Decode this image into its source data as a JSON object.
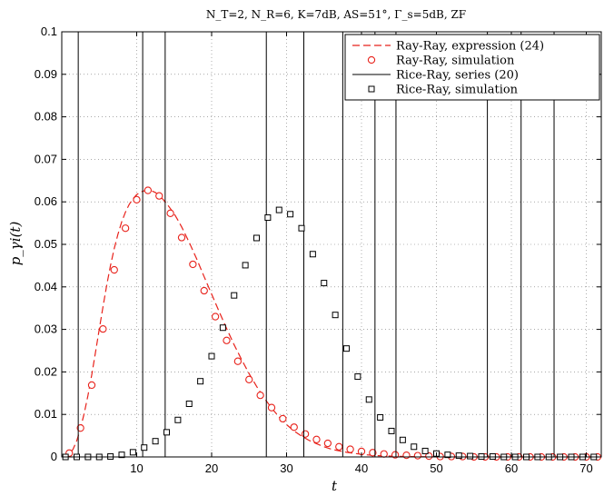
{
  "chart_data": {
    "type": "line",
    "title": "N_T=2, N_R=6, K=7dB, AS=51°, Γ_s=5dB, ZF",
    "xlabel": "t",
    "ylabel": "p_γi(t)",
    "xlim": [
      0,
      72
    ],
    "ylim": [
      0,
      0.1
    ],
    "xticks": [
      10,
      20,
      30,
      40,
      50,
      60,
      70
    ],
    "yticks": [
      "0",
      "0.01",
      "0.02",
      "0.03",
      "0.04",
      "0.05",
      "0.06",
      "0.07",
      "0.08",
      "0.09",
      "0.1"
    ],
    "grid": true,
    "legend_position": "top-right",
    "colors": {
      "ray": "#e8221b",
      "rice": "#000000"
    },
    "series": [
      {
        "name": "Ray-Ray, expression (24)",
        "style": "dashed-line",
        "x": [
          0.1,
          0.5,
          1,
          1.5,
          2,
          2.5,
          3,
          3.5,
          4,
          4.5,
          5,
          5.5,
          6,
          6.5,
          7,
          7.5,
          8,
          8.5,
          9,
          9.5,
          10,
          10.5,
          11,
          11.5,
          12,
          12.5,
          13,
          13.5,
          14,
          14.5,
          15,
          15.5,
          16,
          17,
          18,
          19,
          20,
          21,
          22,
          23,
          24,
          25,
          26,
          27,
          28,
          29,
          30,
          31,
          32,
          33,
          34,
          35,
          36,
          38,
          40,
          42,
          44,
          46,
          48,
          50,
          55,
          60,
          65,
          70,
          72
        ],
        "values": [
          0,
          0.0002,
          0.0007,
          0.0018,
          0.0038,
          0.0067,
          0.0103,
          0.0145,
          0.0193,
          0.0246,
          0.03,
          0.0353,
          0.0404,
          0.045,
          0.049,
          0.0524,
          0.0553,
          0.0576,
          0.0594,
          0.0607,
          0.0617,
          0.0623,
          0.0626,
          0.0627,
          0.0626,
          0.0622,
          0.0615,
          0.0606,
          0.0596,
          0.0584,
          0.0572,
          0.0557,
          0.0541,
          0.0505,
          0.0466,
          0.0424,
          0.0383,
          0.0342,
          0.0302,
          0.0264,
          0.0229,
          0.0196,
          0.0166,
          0.0139,
          0.0115,
          0.0094,
          0.0076,
          0.0061,
          0.0049,
          0.0039,
          0.0031,
          0.0024,
          0.0018,
          0.0011,
          0.0006,
          0.0003,
          0.0002,
          0.0001,
          5e-05,
          2e-05,
          0.0,
          0.0,
          0.0,
          0.0,
          0.0
        ]
      },
      {
        "name": "Ray-Ray, simulation",
        "style": "circle-markers",
        "x": [
          1.0,
          2.5,
          4.0,
          5.5,
          7.0,
          8.5,
          10.0,
          11.5,
          13.0,
          14.5,
          16.0,
          17.5,
          19.0,
          20.5,
          22.0,
          23.5,
          25.0,
          26.5,
          28.0,
          29.5,
          31.0,
          32.5,
          34.0,
          35.5,
          37.0,
          38.5,
          40.0,
          41.5,
          43.0,
          44.5,
          46.0,
          47.5,
          49.0,
          50.5,
          52.0,
          53.5,
          55.0,
          56.5,
          58.0,
          59.5,
          61.0,
          62.5,
          64.0,
          65.5,
          67.0,
          68.5,
          70.0,
          71.5
        ],
        "values": [
          0.0009,
          0.0068,
          0.0169,
          0.0301,
          0.044,
          0.0538,
          0.0605,
          0.0627,
          0.0614,
          0.0573,
          0.0516,
          0.0453,
          0.0391,
          0.033,
          0.0274,
          0.0225,
          0.0182,
          0.0145,
          0.0116,
          0.009,
          0.007,
          0.0054,
          0.0041,
          0.0032,
          0.0024,
          0.0018,
          0.0013,
          0.001,
          0.0007,
          0.0005,
          0.0004,
          0.0003,
          0.0002,
          0.0001,
          0.0001,
          0.0001,
          0.0,
          0.0,
          0.0,
          0.0,
          0.0,
          0.0,
          0.0,
          0.0,
          0.0,
          0.0,
          0.0,
          0.0
        ]
      },
      {
        "name": "Rice-Ray, series (20)",
        "style": "solid-line",
        "x": [
          2.2,
          10.8,
          13.8,
          27.3,
          32.3,
          37.5,
          41.8,
          44.6,
          56.8,
          61.3,
          65.7
        ],
        "values": [
          0.1,
          0.1,
          0.1,
          0.1,
          0.1,
          0.1,
          0.1,
          0.1,
          0.1,
          0.1,
          0.1
        ]
      },
      {
        "name": "Rice-Ray, simulation",
        "style": "square-markers",
        "x": [
          0.5,
          2.0,
          3.5,
          5.0,
          6.5,
          8.0,
          9.5,
          11.0,
          12.5,
          14.0,
          15.5,
          17.0,
          18.5,
          20.0,
          21.5,
          23.0,
          24.5,
          26.0,
          27.5,
          29.0,
          30.5,
          32.0,
          33.5,
          35.0,
          36.5,
          38.0,
          39.5,
          41.0,
          42.5,
          44.0,
          45.5,
          47.0,
          48.5,
          50.0,
          51.5,
          53.0,
          54.5,
          56.0,
          57.5,
          59.0,
          60.5,
          62.0,
          63.5,
          65.0,
          66.5,
          68.0,
          69.5,
          71.0
        ],
        "values": [
          0.0,
          0.0,
          0.0,
          0.0,
          0.0001,
          0.0005,
          0.0011,
          0.0022,
          0.0037,
          0.0058,
          0.0087,
          0.0125,
          0.0178,
          0.0237,
          0.0304,
          0.038,
          0.0451,
          0.0515,
          0.0563,
          0.0581,
          0.0571,
          0.0538,
          0.0477,
          0.0409,
          0.0334,
          0.0255,
          0.0189,
          0.0135,
          0.0093,
          0.0061,
          0.004,
          0.0024,
          0.0014,
          0.0008,
          0.0005,
          0.0003,
          0.0002,
          0.0001,
          0.0001,
          0.0,
          0.0,
          0.0,
          0.0,
          0.0,
          0.0,
          0.0,
          0.0,
          0.0
        ]
      }
    ]
  }
}
